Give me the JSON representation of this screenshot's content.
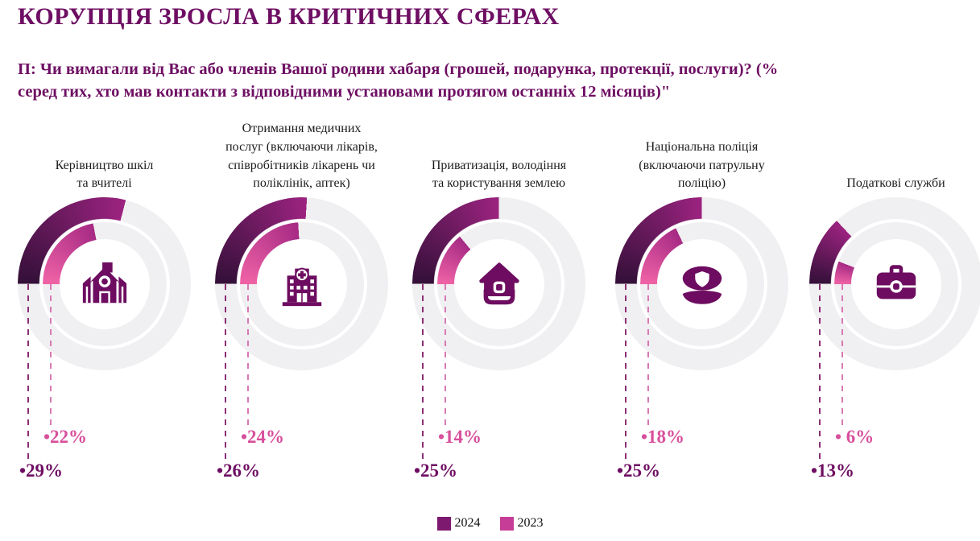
{
  "page": {
    "title": "КОРУПЦІЯ ЗРОСЛА В КРИТИЧНИХ СФЕРАХ",
    "question": "П: Чи вимагали від Вас або членів Вашої родини хабаря (грошей, подарунка, протекції, послуги)? (%\nсеред тих, хто мав контакти з відповідними установами протягом останніх 12 місяців)\""
  },
  "legend": {
    "items": [
      {
        "label": "2024",
        "color": "#7d196f"
      },
      {
        "label": "2023",
        "color": "#c63d97"
      }
    ]
  },
  "colors": {
    "title_text": "#6e0e63",
    "question_text": "#6e0e63",
    "category_text": "#1c1c1c",
    "arc_2024_start": "#331038",
    "arc_2024_end": "#9c2380",
    "arc_2023_start": "#f063a6",
    "arc_2023_end": "#a62a84",
    "track": "#f0eff1",
    "icon": "#6d0c60",
    "pct_2024_text": "#6e0e63",
    "pct_2023_text": "#d8509c",
    "dash_2024": "#8c2f74",
    "dash_2023": "#d879b4"
  },
  "chart_data": {
    "type": "donut",
    "unit": "%",
    "title": "КОРУПЦІЯ ЗРОСЛА В КРИТИЧНИХ СФЕРАХ",
    "subtitle": "П: Чи вимагали від Вас або членів Вашої родини хабаря (грошей, подарунка, протекції, послуги)? (% серед тих, хто мав контакти з відповідними установами протягом останніх 12 місяців)\"",
    "legend_position": "bottom-center",
    "series_years": [
      "2024",
      "2023"
    ],
    "value_range": [
      0,
      100
    ],
    "charts": [
      {
        "category": "Керівництво шкіл\nта вчителі",
        "icon": "school",
        "value_2024": 29,
        "value_2023": 22,
        "label_2024": "•29%",
        "label_2023": "•22%"
      },
      {
        "category": "Отримання медичних\nпослуг (включаючи лікарів,\nспівробітників лікарень чи\nполіклінік, аптек)",
        "icon": "hospital",
        "value_2024": 26,
        "value_2023": 24,
        "label_2024": "•26%",
        "label_2023": "•24%"
      },
      {
        "category": "Приватизація, володіння\nта користування землею",
        "icon": "house-land",
        "value_2024": 25,
        "value_2023": 14,
        "label_2024": "•25%",
        "label_2023": "•14%"
      },
      {
        "category": "Національна поліція\n(включаючи патрульну\nполіцію)",
        "icon": "police-cap",
        "value_2024": 25,
        "value_2023": 18,
        "label_2024": "•25%",
        "label_2023": "•18%"
      },
      {
        "category": "Податкові служби",
        "icon": "briefcase",
        "value_2024": 13,
        "value_2023": 6,
        "label_2024": "•13%",
        "label_2023": "• 6%"
      }
    ]
  }
}
